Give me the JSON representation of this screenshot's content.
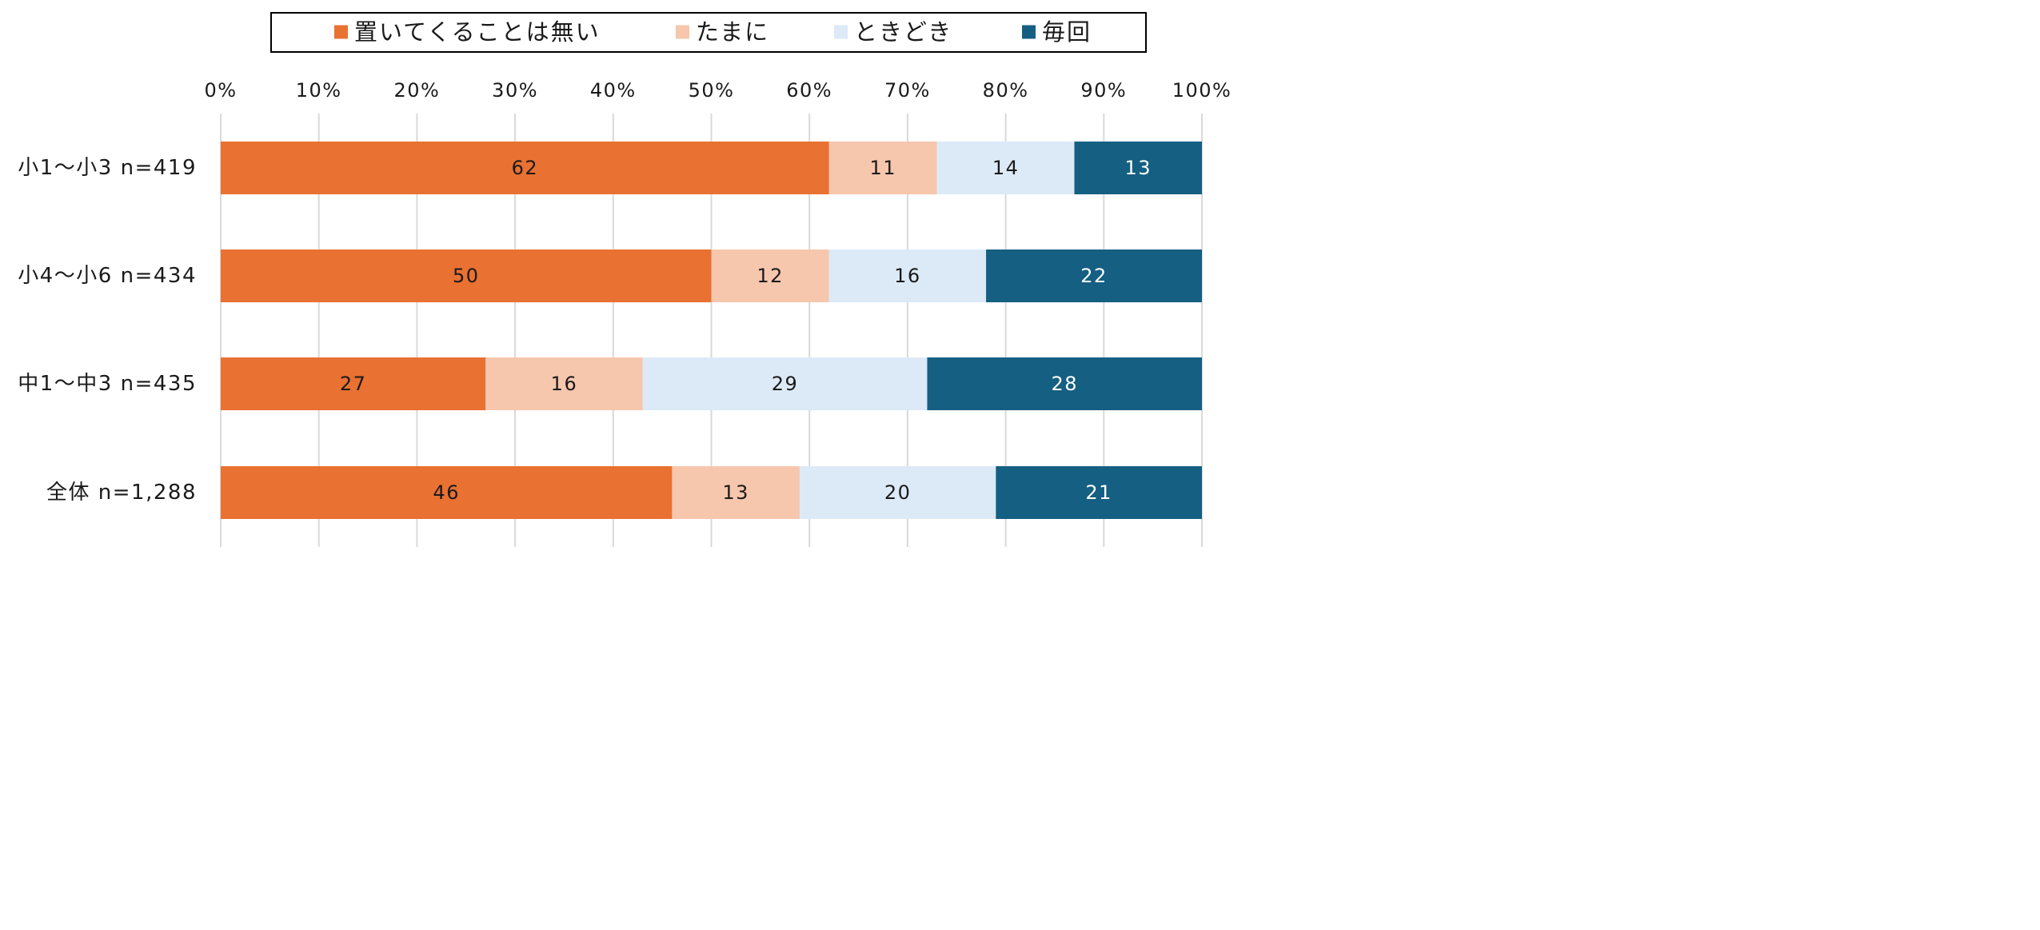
{
  "chart_data": {
    "type": "bar",
    "orientation": "horizontal",
    "stacked": true,
    "percent": true,
    "title": "",
    "xlabel": "",
    "ylabel": "",
    "xlim": [
      0,
      100
    ],
    "x_ticks": [
      0,
      10,
      20,
      30,
      40,
      50,
      60,
      70,
      80,
      90,
      100
    ],
    "x_tick_labels": [
      "0%",
      "10%",
      "20%",
      "30%",
      "40%",
      "50%",
      "60%",
      "70%",
      "80%",
      "90%",
      "100%"
    ],
    "grid": true,
    "legend_position": "top",
    "categories": [
      "小1～小3 n=419",
      "小4～小6 n=434",
      "中1～中3 n=435",
      "全体 n=1,288"
    ],
    "series": [
      {
        "name": "置いてくることは無い",
        "color": "#E97132",
        "label_color": "#1a1a1a",
        "values": [
          62,
          50,
          27,
          46
        ]
      },
      {
        "name": "たまに",
        "color": "#F6C6AD",
        "label_color": "#1a1a1a",
        "values": [
          11,
          12,
          16,
          13
        ]
      },
      {
        "name": "ときどき",
        "color": "#DCEAF7",
        "label_color": "#1a1a1a",
        "values": [
          14,
          16,
          29,
          20
        ]
      },
      {
        "name": "毎回",
        "color": "#155F82",
        "label_color": "#ffffff",
        "values": [
          13,
          22,
          28,
          21
        ]
      }
    ]
  }
}
